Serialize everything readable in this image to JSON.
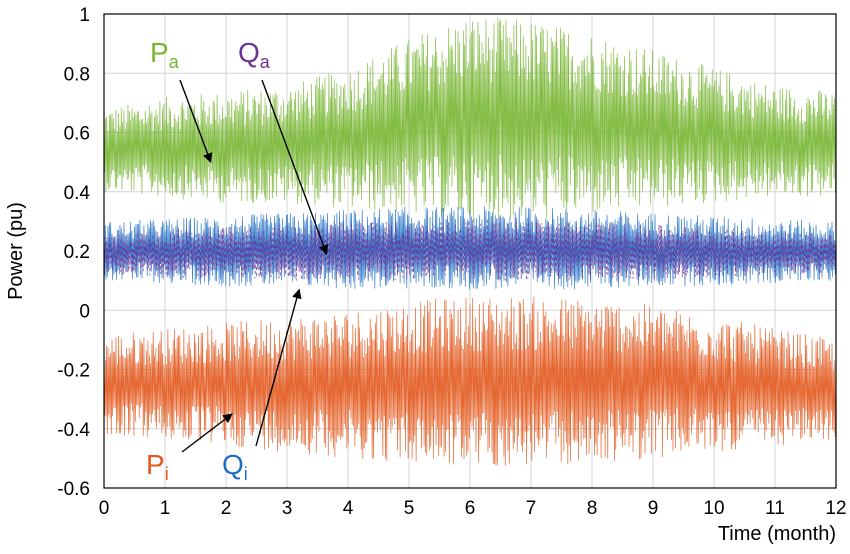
{
  "chart_data": {
    "type": "line",
    "title": "",
    "xlabel": "Time (month)",
    "ylabel": "Power (pu)",
    "xlim": [
      0,
      12
    ],
    "ylim": [
      -0.6,
      1
    ],
    "x_ticks": [
      "0",
      "1",
      "2",
      "3",
      "4",
      "5",
      "6",
      "7",
      "8",
      "9",
      "10",
      "11",
      "12"
    ],
    "y_ticks": [
      "1",
      "0.8",
      "0.6",
      "0.4",
      "0.2",
      "0",
      "-0.2",
      "-0.4",
      "-0.6"
    ],
    "grid": true,
    "x": [
      0,
      1,
      2,
      3,
      4,
      5,
      6,
      7,
      8,
      9,
      10,
      11,
      12
    ],
    "series": [
      {
        "name": "Pa",
        "base": "P",
        "sub": "a",
        "color": "#77b631",
        "low": [
          0.4,
          0.38,
          0.36,
          0.36,
          0.34,
          0.32,
          0.3,
          0.3,
          0.32,
          0.34,
          0.36,
          0.38,
          0.38
        ],
        "high": [
          0.68,
          0.72,
          0.74,
          0.76,
          0.82,
          0.92,
          1.0,
          0.98,
          0.94,
          0.88,
          0.82,
          0.76,
          0.74
        ]
      },
      {
        "name": "Qa",
        "base": "Q",
        "sub": "a",
        "color": "#6f3198",
        "low": [
          0.12,
          0.11,
          0.11,
          0.1,
          0.1,
          0.1,
          0.1,
          0.1,
          0.1,
          0.1,
          0.11,
          0.12,
          0.12
        ],
        "high": [
          0.26,
          0.27,
          0.28,
          0.29,
          0.3,
          0.3,
          0.31,
          0.31,
          0.3,
          0.29,
          0.28,
          0.27,
          0.26
        ]
      },
      {
        "name": "Qi",
        "base": "Q",
        "sub": "i",
        "color": "#1f6fc5",
        "low": [
          0.1,
          0.09,
          0.08,
          0.08,
          0.07,
          0.07,
          0.07,
          0.07,
          0.07,
          0.08,
          0.08,
          0.09,
          0.1
        ],
        "high": [
          0.3,
          0.31,
          0.32,
          0.33,
          0.34,
          0.35,
          0.35,
          0.35,
          0.34,
          0.33,
          0.32,
          0.31,
          0.3
        ]
      },
      {
        "name": "Pi",
        "base": "P",
        "sub": "i",
        "color": "#e2581c",
        "low": [
          -0.42,
          -0.44,
          -0.46,
          -0.48,
          -0.5,
          -0.52,
          -0.53,
          -0.53,
          -0.52,
          -0.5,
          -0.48,
          -0.46,
          -0.44
        ],
        "high": [
          -0.08,
          -0.06,
          -0.04,
          -0.02,
          0.0,
          0.03,
          0.05,
          0.05,
          0.04,
          0.02,
          -0.02,
          -0.06,
          -0.1
        ]
      }
    ],
    "annotations": [
      {
        "series": "Pa",
        "points_to": [
          1.75,
          0.5
        ]
      },
      {
        "series": "Qa",
        "points_to": [
          3.65,
          0.19
        ]
      },
      {
        "series": "Qi",
        "points_to": [
          3.2,
          0.07
        ]
      },
      {
        "series": "Pi",
        "points_to": [
          2.1,
          -0.35
        ]
      }
    ]
  }
}
